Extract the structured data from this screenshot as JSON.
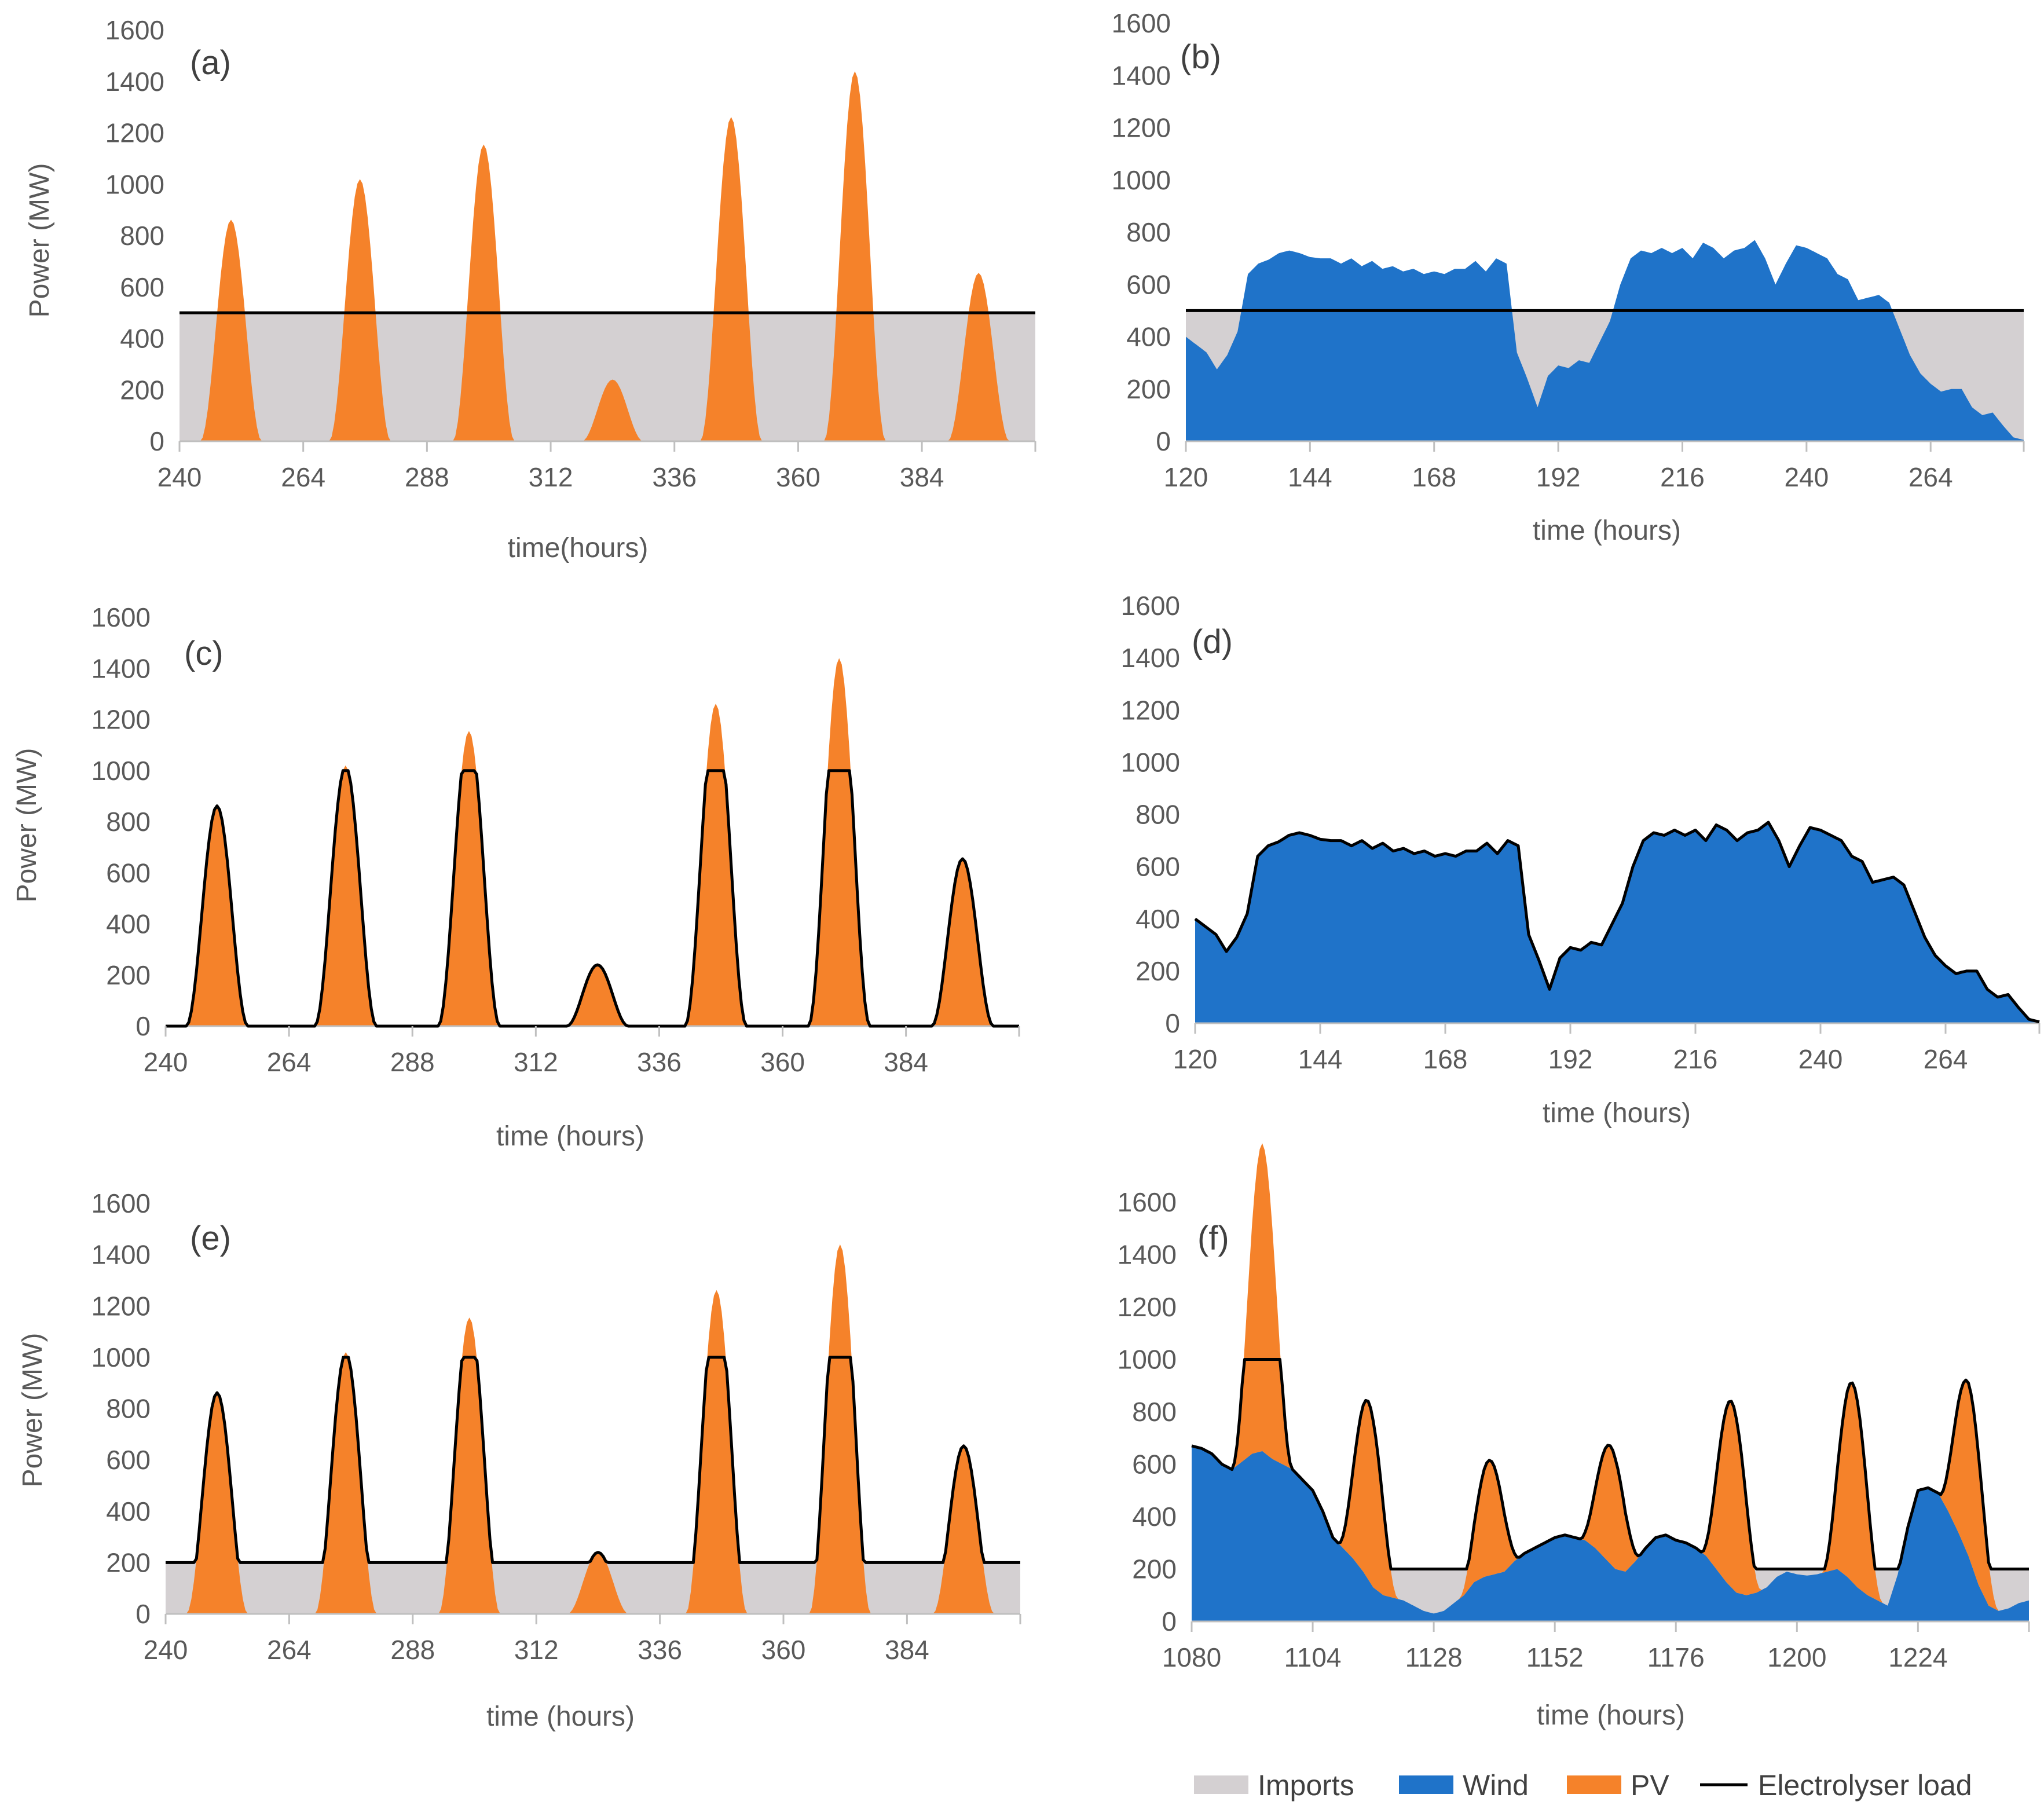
{
  "colors": {
    "imports": "#d4d0d2",
    "wind": "#1f73c9",
    "pv": "#f5822a",
    "load": "#000000",
    "axis": "#bfbfbf",
    "text": "#595959"
  },
  "legend": {
    "imports": "Imports",
    "wind": "Wind",
    "pv": "PV",
    "load": "Electrolyser load"
  },
  "chart_data": [
    {
      "type": "area",
      "panel": "(a)",
      "ylabel": "Power (MW)",
      "xlabel": "time(hours)",
      "xlim": [
        240,
        406
      ],
      "ylim": [
        0,
        1600
      ],
      "x_ticks": [
        240,
        264,
        288,
        312,
        336,
        360,
        384
      ],
      "y_ticks": [
        0,
        200,
        400,
        600,
        800,
        1000,
        1200,
        1400,
        1600
      ],
      "layers": [
        "imports",
        "pv",
        "load"
      ],
      "electrolyser_load": {
        "type": "constant",
        "value": 500
      },
      "pv_peaks": [
        [
          250,
          862
        ],
        [
          275,
          1020
        ],
        [
          299,
          1155
        ],
        [
          324,
          240
        ],
        [
          347,
          1262
        ],
        [
          371,
          1440
        ],
        [
          395,
          655
        ]
      ]
    },
    {
      "type": "area",
      "panel": "(b)",
      "ylabel": "",
      "xlabel": "time (hours)",
      "xlim": [
        120,
        282
      ],
      "ylim": [
        0,
        1600
      ],
      "x_ticks": [
        120,
        144,
        168,
        192,
        216,
        240,
        264
      ],
      "y_ticks": [
        0,
        200,
        400,
        600,
        800,
        1000,
        1200,
        1400,
        1600
      ],
      "layers": [
        "imports",
        "wind",
        "load"
      ],
      "electrolyser_load": {
        "type": "constant",
        "value": 500
      },
      "wind": [
        [
          120,
          400
        ],
        [
          122,
          370
        ],
        [
          124,
          340
        ],
        [
          126,
          275
        ],
        [
          128,
          330
        ],
        [
          130,
          420
        ],
        [
          132,
          640
        ],
        [
          134,
          680
        ],
        [
          136,
          695
        ],
        [
          138,
          720
        ],
        [
          140,
          730
        ],
        [
          142,
          720
        ],
        [
          144,
          705
        ],
        [
          146,
          700
        ],
        [
          148,
          700
        ],
        [
          150,
          680
        ],
        [
          152,
          700
        ],
        [
          154,
          670
        ],
        [
          156,
          690
        ],
        [
          158,
          660
        ],
        [
          160,
          670
        ],
        [
          162,
          650
        ],
        [
          164,
          660
        ],
        [
          166,
          640
        ],
        [
          168,
          650
        ],
        [
          170,
          640
        ],
        [
          172,
          660
        ],
        [
          174,
          660
        ],
        [
          176,
          690
        ],
        [
          178,
          650
        ],
        [
          180,
          700
        ],
        [
          182,
          680
        ],
        [
          184,
          340
        ],
        [
          186,
          240
        ],
        [
          188,
          130
        ],
        [
          190,
          250
        ],
        [
          192,
          290
        ],
        [
          194,
          280
        ],
        [
          196,
          310
        ],
        [
          198,
          300
        ],
        [
          200,
          380
        ],
        [
          202,
          460
        ],
        [
          204,
          600
        ],
        [
          206,
          700
        ],
        [
          208,
          730
        ],
        [
          210,
          720
        ],
        [
          212,
          740
        ],
        [
          214,
          720
        ],
        [
          216,
          740
        ],
        [
          218,
          700
        ],
        [
          220,
          760
        ],
        [
          222,
          740
        ],
        [
          224,
          700
        ],
        [
          226,
          730
        ],
        [
          228,
          740
        ],
        [
          230,
          770
        ],
        [
          232,
          700
        ],
        [
          234,
          600
        ],
        [
          236,
          680
        ],
        [
          238,
          750
        ],
        [
          240,
          740
        ],
        [
          242,
          720
        ],
        [
          244,
          700
        ],
        [
          246,
          640
        ],
        [
          248,
          620
        ],
        [
          250,
          540
        ],
        [
          252,
          550
        ],
        [
          254,
          560
        ],
        [
          256,
          530
        ],
        [
          258,
          430
        ],
        [
          260,
          330
        ],
        [
          262,
          260
        ],
        [
          264,
          220
        ],
        [
          266,
          190
        ],
        [
          268,
          200
        ],
        [
          270,
          200
        ],
        [
          272,
          130
        ],
        [
          274,
          100
        ],
        [
          276,
          110
        ],
        [
          278,
          60
        ],
        [
          280,
          15
        ],
        [
          282,
          5
        ]
      ]
    },
    {
      "type": "area",
      "panel": "(c)",
      "ylabel": "Power (MW)",
      "xlabel": "time (hours)",
      "xlim": [
        240,
        406
      ],
      "ylim": [
        0,
        1600
      ],
      "x_ticks": [
        240,
        264,
        288,
        312,
        336,
        360,
        384
      ],
      "y_ticks": [
        0,
        200,
        400,
        600,
        800,
        1000,
        1200,
        1400,
        1600
      ],
      "layers": [
        "pv",
        "load"
      ],
      "electrolyser_load": {
        "type": "follow_pv",
        "min": 0,
        "max": 1000
      },
      "pv_peaks": [
        [
          250,
          862
        ],
        [
          275,
          1020
        ],
        [
          299,
          1155
        ],
        [
          324,
          240
        ],
        [
          347,
          1262
        ],
        [
          371,
          1440
        ],
        [
          395,
          655
        ]
      ]
    },
    {
      "type": "area",
      "panel": "(d)",
      "ylabel": "",
      "xlabel": "time (hours)",
      "xlim": [
        120,
        282
      ],
      "ylim": [
        0,
        1600
      ],
      "x_ticks": [
        120,
        144,
        168,
        192,
        216,
        240,
        264
      ],
      "y_ticks": [
        0,
        200,
        400,
        600,
        800,
        1000,
        1200,
        1400,
        1600
      ],
      "layers": [
        "wind",
        "load"
      ],
      "electrolyser_load": {
        "type": "follow_wind",
        "min": 0,
        "max": 1000
      },
      "wind": [
        [
          120,
          400
        ],
        [
          122,
          370
        ],
        [
          124,
          340
        ],
        [
          126,
          275
        ],
        [
          128,
          330
        ],
        [
          130,
          420
        ],
        [
          132,
          640
        ],
        [
          134,
          680
        ],
        [
          136,
          695
        ],
        [
          138,
          720
        ],
        [
          140,
          730
        ],
        [
          142,
          720
        ],
        [
          144,
          705
        ],
        [
          146,
          700
        ],
        [
          148,
          700
        ],
        [
          150,
          680
        ],
        [
          152,
          700
        ],
        [
          154,
          670
        ],
        [
          156,
          690
        ],
        [
          158,
          660
        ],
        [
          160,
          670
        ],
        [
          162,
          650
        ],
        [
          164,
          660
        ],
        [
          166,
          640
        ],
        [
          168,
          650
        ],
        [
          170,
          640
        ],
        [
          172,
          660
        ],
        [
          174,
          660
        ],
        [
          176,
          690
        ],
        [
          178,
          650
        ],
        [
          180,
          700
        ],
        [
          182,
          680
        ],
        [
          184,
          340
        ],
        [
          186,
          240
        ],
        [
          188,
          130
        ],
        [
          190,
          250
        ],
        [
          192,
          290
        ],
        [
          194,
          280
        ],
        [
          196,
          310
        ],
        [
          198,
          300
        ],
        [
          200,
          380
        ],
        [
          202,
          460
        ],
        [
          204,
          600
        ],
        [
          206,
          700
        ],
        [
          208,
          730
        ],
        [
          210,
          720
        ],
        [
          212,
          740
        ],
        [
          214,
          720
        ],
        [
          216,
          740
        ],
        [
          218,
          700
        ],
        [
          220,
          760
        ],
        [
          222,
          740
        ],
        [
          224,
          700
        ],
        [
          226,
          730
        ],
        [
          228,
          740
        ],
        [
          230,
          770
        ],
        [
          232,
          700
        ],
        [
          234,
          600
        ],
        [
          236,
          680
        ],
        [
          238,
          750
        ],
        [
          240,
          740
        ],
        [
          242,
          720
        ],
        [
          244,
          700
        ],
        [
          246,
          640
        ],
        [
          248,
          620
        ],
        [
          250,
          540
        ],
        [
          252,
          550
        ],
        [
          254,
          560
        ],
        [
          256,
          530
        ],
        [
          258,
          430
        ],
        [
          260,
          330
        ],
        [
          262,
          260
        ],
        [
          264,
          220
        ],
        [
          266,
          190
        ],
        [
          268,
          200
        ],
        [
          270,
          200
        ],
        [
          272,
          130
        ],
        [
          274,
          100
        ],
        [
          276,
          110
        ],
        [
          278,
          60
        ],
        [
          280,
          15
        ],
        [
          282,
          5
        ]
      ]
    },
    {
      "type": "area",
      "panel": "(e)",
      "ylabel": "Power (MW)",
      "xlabel": "time (hours)",
      "xlim": [
        240,
        406
      ],
      "ylim": [
        0,
        1600
      ],
      "x_ticks": [
        240,
        264,
        288,
        312,
        336,
        360,
        384
      ],
      "y_ticks": [
        0,
        200,
        400,
        600,
        800,
        1000,
        1200,
        1400,
        1600
      ],
      "layers": [
        "imports",
        "pv",
        "load"
      ],
      "electrolyser_load": {
        "type": "follow_pv",
        "min": 200,
        "max": 1000
      },
      "pv_peaks": [
        [
          250,
          862
        ],
        [
          275,
          1020
        ],
        [
          299,
          1155
        ],
        [
          324,
          240
        ],
        [
          347,
          1262
        ],
        [
          371,
          1440
        ],
        [
          395,
          655
        ]
      ]
    },
    {
      "type": "area",
      "panel": "(f)",
      "ylabel": "",
      "xlabel": "time (hours)",
      "xlim": [
        1080,
        1246
      ],
      "ylim": [
        0,
        1600
      ],
      "x_ticks": [
        1080,
        1104,
        1128,
        1152,
        1176,
        1200,
        1224
      ],
      "y_ticks": [
        0,
        200,
        400,
        600,
        800,
        1000,
        1200,
        1400,
        1600
      ],
      "layers": [
        "imports",
        "wind",
        "pv",
        "load"
      ],
      "electrolyser_load": {
        "type": "follow_total",
        "min": 200,
        "max": 1000
      },
      "wind": [
        [
          1080,
          670
        ],
        [
          1082,
          660
        ],
        [
          1084,
          640
        ],
        [
          1086,
          600
        ],
        [
          1088,
          580
        ],
        [
          1090,
          610
        ],
        [
          1092,
          640
        ],
        [
          1094,
          650
        ],
        [
          1096,
          620
        ],
        [
          1098,
          600
        ],
        [
          1100,
          580
        ],
        [
          1102,
          540
        ],
        [
          1104,
          500
        ],
        [
          1106,
          420
        ],
        [
          1108,
          320
        ],
        [
          1110,
          280
        ],
        [
          1112,
          240
        ],
        [
          1114,
          190
        ],
        [
          1116,
          130
        ],
        [
          1118,
          100
        ],
        [
          1120,
          90
        ],
        [
          1122,
          80
        ],
        [
          1124,
          60
        ],
        [
          1126,
          40
        ],
        [
          1128,
          30
        ],
        [
          1130,
          40
        ],
        [
          1132,
          70
        ],
        [
          1134,
          100
        ],
        [
          1136,
          150
        ],
        [
          1138,
          170
        ],
        [
          1140,
          180
        ],
        [
          1142,
          190
        ],
        [
          1144,
          230
        ],
        [
          1146,
          260
        ],
        [
          1148,
          280
        ],
        [
          1150,
          300
        ],
        [
          1152,
          320
        ],
        [
          1154,
          330
        ],
        [
          1156,
          320
        ],
        [
          1158,
          310
        ],
        [
          1160,
          280
        ],
        [
          1162,
          240
        ],
        [
          1164,
          200
        ],
        [
          1166,
          190
        ],
        [
          1168,
          230
        ],
        [
          1170,
          280
        ],
        [
          1172,
          320
        ],
        [
          1174,
          330
        ],
        [
          1176,
          310
        ],
        [
          1178,
          300
        ],
        [
          1180,
          280
        ],
        [
          1182,
          250
        ],
        [
          1184,
          200
        ],
        [
          1186,
          150
        ],
        [
          1188,
          110
        ],
        [
          1190,
          100
        ],
        [
          1192,
          110
        ],
        [
          1194,
          130
        ],
        [
          1196,
          170
        ],
        [
          1198,
          190
        ],
        [
          1200,
          180
        ],
        [
          1202,
          175
        ],
        [
          1204,
          180
        ],
        [
          1206,
          190
        ],
        [
          1208,
          200
        ],
        [
          1210,
          170
        ],
        [
          1212,
          130
        ],
        [
          1214,
          100
        ],
        [
          1216,
          80
        ],
        [
          1218,
          60
        ],
        [
          1220,
          180
        ],
        [
          1222,
          360
        ],
        [
          1224,
          500
        ],
        [
          1226,
          510
        ],
        [
          1228,
          490
        ],
        [
          1230,
          420
        ],
        [
          1232,
          340
        ],
        [
          1234,
          250
        ],
        [
          1236,
          140
        ],
        [
          1238,
          60
        ],
        [
          1240,
          40
        ],
        [
          1242,
          50
        ],
        [
          1244,
          70
        ],
        [
          1246,
          80
        ]
      ],
      "pv_peaks": [
        [
          1094,
          1175
        ],
        [
          1115,
          680
        ],
        [
          1139,
          440
        ],
        [
          1163,
          450
        ],
        [
          1187,
          710
        ],
        [
          1211,
          760
        ],
        [
          1234,
          660
        ]
      ]
    }
  ]
}
